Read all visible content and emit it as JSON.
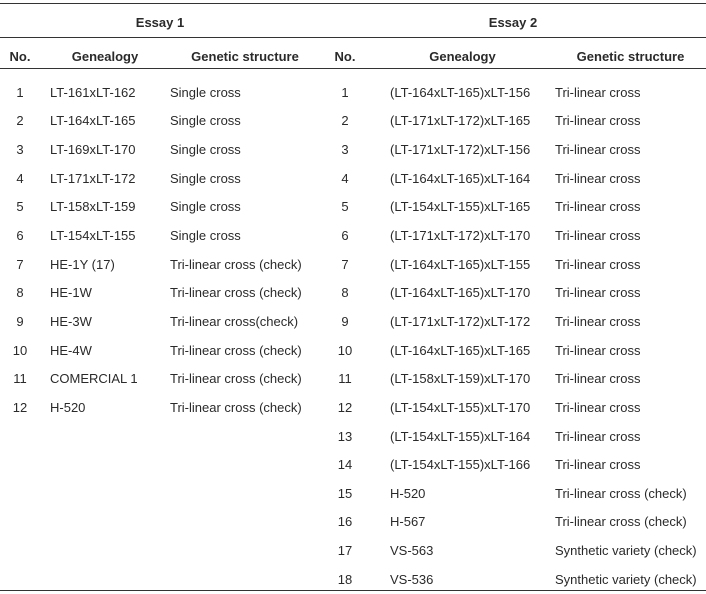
{
  "essays": [
    {
      "title": "Essay 1",
      "headers": [
        "No.",
        "Genealogy",
        "Genetic structure"
      ],
      "rows": [
        [
          "1",
          "LT-161xLT-162",
          "Single cross"
        ],
        [
          "2",
          "LT-164xLT-165",
          "Single cross"
        ],
        [
          "3",
          "LT-169xLT-170",
          "Single cross"
        ],
        [
          "4",
          "LT-171xLT-172",
          "Single cross"
        ],
        [
          "5",
          "LT-158xLT-159",
          "Single cross"
        ],
        [
          "6",
          "LT-154xLT-155",
          "Single cross"
        ],
        [
          "7",
          "HE-1Y (17)",
          "Tri-linear cross (check)"
        ],
        [
          "8",
          "HE-1W",
          "Tri-linear cross (check)"
        ],
        [
          "9",
          "HE-3W",
          "Tri-linear cross(check)"
        ],
        [
          "10",
          "HE-4W",
          "Tri-linear cross (check)"
        ],
        [
          "11",
          "COMERCIAL 1",
          "Tri-linear cross (check)"
        ],
        [
          "12",
          "H-520",
          "Tri-linear cross (check)"
        ]
      ]
    },
    {
      "title": "Essay 2",
      "headers": [
        "No.",
        "Genealogy",
        "Genetic structure"
      ],
      "rows": [
        [
          "1",
          "(LT-164xLT-165)xLT-156",
          "Tri-linear cross"
        ],
        [
          "2",
          "(LT-171xLT-172)xLT-165",
          "Tri-linear cross"
        ],
        [
          "3",
          "(LT-171xLT-172)xLT-156",
          "Tri-linear cross"
        ],
        [
          "4",
          "(LT-164xLT-165)xLT-164",
          "Tri-linear cross"
        ],
        [
          "5",
          "(LT-154xLT-155)xLT-165",
          "Tri-linear cross"
        ],
        [
          "6",
          "(LT-171xLT-172)xLT-170",
          "Tri-linear cross"
        ],
        [
          "7",
          "(LT-164xLT-165)xLT-155",
          "Tri-linear cross"
        ],
        [
          "8",
          "(LT-164xLT-165)xLT-170",
          "Tri-linear cross"
        ],
        [
          "9",
          "(LT-171xLT-172)xLT-172",
          "Tri-linear cross"
        ],
        [
          "10",
          "(LT-164xLT-165)xLT-165",
          "Tri-linear cross"
        ],
        [
          "11",
          "(LT-158xLT-159)xLT-170",
          "Tri-linear cross"
        ],
        [
          "12",
          "(LT-154xLT-155)xLT-170",
          "Tri-linear cross"
        ],
        [
          "13",
          "(LT-154xLT-155)xLT-164",
          "Tri-linear cross"
        ],
        [
          "14",
          "(LT-154xLT-155)xLT-166",
          "Tri-linear cross"
        ],
        [
          "15",
          "H-520",
          "Tri-linear cross (check)"
        ],
        [
          "16",
          "H-567",
          "Tri-linear cross (check)"
        ],
        [
          "17",
          "VS-563",
          "Synthetic variety (check)"
        ],
        [
          "18",
          "VS-536",
          "Synthetic variety (check)"
        ]
      ]
    }
  ]
}
